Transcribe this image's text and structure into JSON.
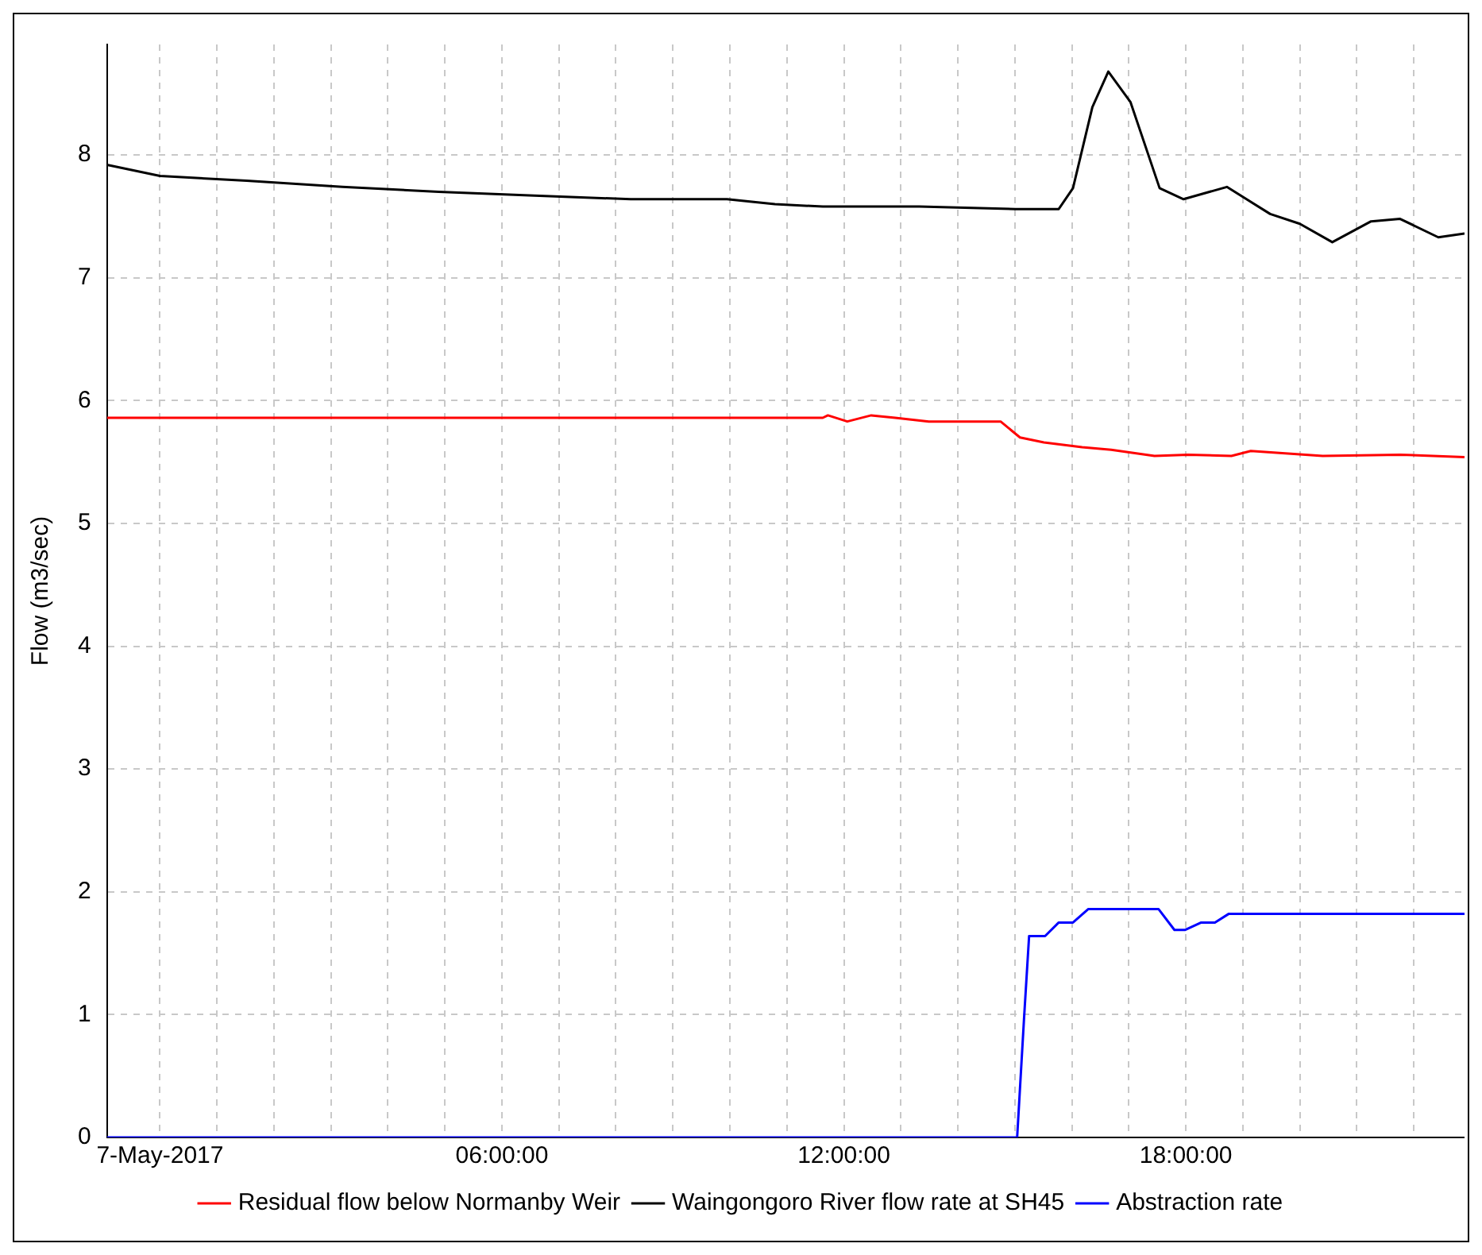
{
  "chart_data": {
    "type": "line",
    "ylabel": "Flow (m3/sec)",
    "xlim": [
      -0.93,
      22.89
    ],
    "ylim": [
      0,
      8.9
    ],
    "yticks": [
      0,
      1,
      2,
      3,
      4,
      5,
      6,
      7,
      8
    ],
    "xticks": [
      {
        "value": 0,
        "label": "7-May-2017"
      },
      {
        "value": 1,
        "label": null
      },
      {
        "value": 2,
        "label": null
      },
      {
        "value": 3,
        "label": null
      },
      {
        "value": 4,
        "label": null
      },
      {
        "value": 5,
        "label": null
      },
      {
        "value": 6,
        "label": "06:00:00"
      },
      {
        "value": 7,
        "label": null
      },
      {
        "value": 8,
        "label": null
      },
      {
        "value": 9,
        "label": null
      },
      {
        "value": 10,
        "label": null
      },
      {
        "value": 11,
        "label": null
      },
      {
        "value": 12,
        "label": "12:00:00"
      },
      {
        "value": 13,
        "label": null
      },
      {
        "value": 14,
        "label": null
      },
      {
        "value": 15,
        "label": null
      },
      {
        "value": 16,
        "label": null
      },
      {
        "value": 17,
        "label": null
      },
      {
        "value": 18,
        "label": "18:00:00"
      },
      {
        "value": 19,
        "label": null
      },
      {
        "value": 20,
        "label": null
      },
      {
        "value": 21,
        "label": null
      },
      {
        "value": 22,
        "label": null
      }
    ],
    "grid": true,
    "legend": "bottom",
    "marker": "none",
    "line_style": "solid",
    "series": [
      {
        "name": "Residual flow below Normanby Weir",
        "color": "#ff0000",
        "x": [
          -0.93,
          11.63,
          11.72,
          12.06,
          12.48,
          12.9,
          13.49,
          14.75,
          15.09,
          15.51,
          16.18,
          16.69,
          17.45,
          18.04,
          18.8,
          19.14,
          20.4,
          21.76,
          22.89
        ],
        "values": [
          5.86,
          5.86,
          5.88,
          5.83,
          5.88,
          5.86,
          5.83,
          5.83,
          5.7,
          5.66,
          5.62,
          5.6,
          5.55,
          5.56,
          5.55,
          5.59,
          5.55,
          5.56,
          5.54
        ]
      },
      {
        "name": "Waingongoro River flow rate at SH45",
        "color": "#000000",
        "x": [
          -0.93,
          0,
          1.52,
          3.2,
          4.89,
          6.57,
          8.26,
          9.95,
          10.79,
          11.63,
          13.32,
          15.01,
          15.77,
          16.02,
          16.36,
          16.64,
          17.03,
          17.54,
          17.96,
          18.72,
          19.48,
          20,
          20.57,
          21.25,
          21.76,
          22.43,
          22.89
        ],
        "values": [
          7.92,
          7.83,
          7.79,
          7.74,
          7.7,
          7.67,
          7.64,
          7.64,
          7.6,
          7.58,
          7.58,
          7.56,
          7.56,
          7.73,
          8.39,
          8.68,
          8.43,
          7.73,
          7.64,
          7.74,
          7.52,
          7.44,
          7.29,
          7.46,
          7.48,
          7.33,
          7.36
        ]
      },
      {
        "name": "Abstraction rate",
        "color": "#0000ff",
        "x": [
          -0.93,
          15.04,
          15.16,
          15.25,
          15.53,
          15.77,
          16.02,
          16.29,
          17.52,
          17.8,
          17.99,
          18.27,
          18.51,
          18.75,
          22.89
        ],
        "values": [
          0,
          0,
          0.96,
          1.64,
          1.64,
          1.75,
          1.75,
          1.86,
          1.86,
          1.69,
          1.69,
          1.75,
          1.75,
          1.82,
          1.82
        ]
      }
    ]
  }
}
